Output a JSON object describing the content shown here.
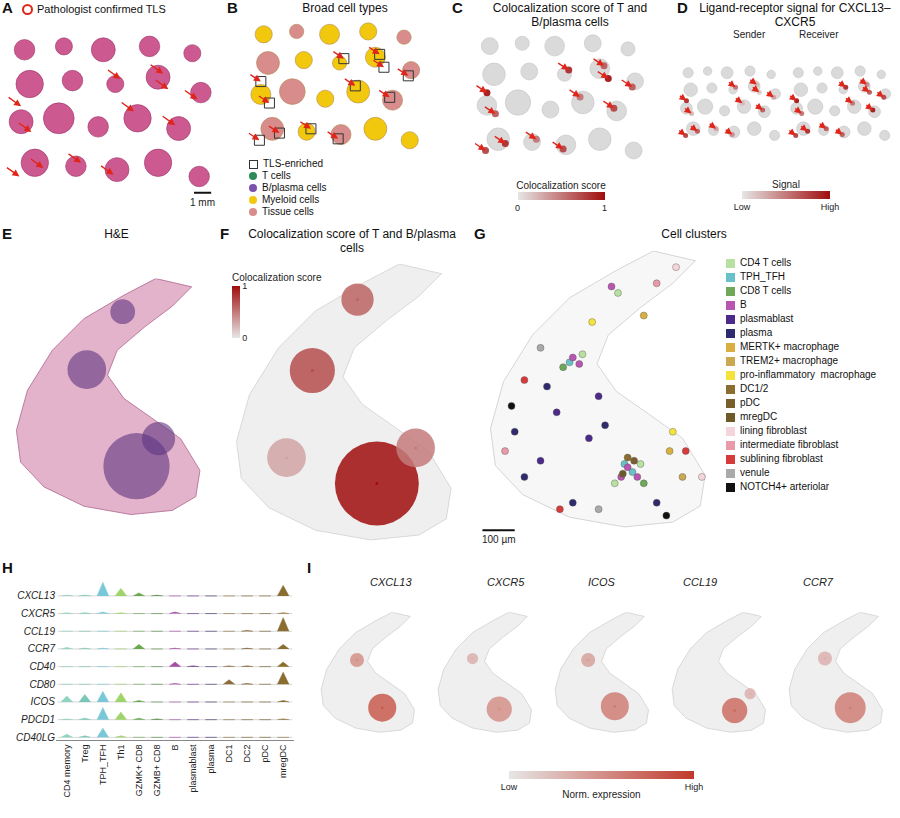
{
  "slide": {
    "xlim": [
      0,
      12.5
    ],
    "ylim": [
      0,
      9.5
    ],
    "sections": [
      [
        1.2,
        1.0,
        0.6
      ],
      [
        3.5,
        0.8,
        0.5
      ],
      [
        5.8,
        1.0,
        0.7
      ],
      [
        8.5,
        0.8,
        0.6
      ],
      [
        11.0,
        1.2,
        0.5
      ],
      [
        1.5,
        3.0,
        0.8
      ],
      [
        4.0,
        2.8,
        0.6
      ],
      [
        6.5,
        3.0,
        0.5
      ],
      [
        9.0,
        2.6,
        0.7
      ],
      [
        11.5,
        3.5,
        0.6
      ],
      [
        1.0,
        5.2,
        0.7
      ],
      [
        3.2,
        5.0,
        0.9
      ],
      [
        5.5,
        5.5,
        0.6
      ],
      [
        7.8,
        5.0,
        0.8
      ],
      [
        10.2,
        5.6,
        0.7
      ],
      [
        1.8,
        7.6,
        0.8
      ],
      [
        4.2,
        7.8,
        0.6
      ],
      [
        6.6,
        8.0,
        0.7
      ],
      [
        9.0,
        7.6,
        0.8
      ],
      [
        11.4,
        8.4,
        0.6
      ]
    ],
    "tls": [
      [
        1.0,
        4.3
      ],
      [
        1.6,
        5.8
      ],
      [
        2.3,
        7.9
      ],
      [
        0.9,
        8.4
      ],
      [
        4.5,
        7.6
      ],
      [
        6.8,
        2.7
      ],
      [
        9.3,
        2.4
      ],
      [
        9.6,
        3.3
      ],
      [
        10.0,
        5.4
      ],
      [
        7.6,
        4.6
      ],
      [
        11.3,
        3.9
      ],
      [
        6.4,
        8.3
      ]
    ]
  },
  "tissue": {
    "xlim": [
      0,
      750
    ],
    "ylim": [
      0,
      880
    ],
    "outline": [
      [
        550,
        0
      ],
      [
        680,
        30
      ],
      [
        610,
        100
      ],
      [
        510,
        175
      ],
      [
        410,
        260
      ],
      [
        375,
        350
      ],
      [
        435,
        435
      ],
      [
        535,
        505
      ],
      [
        640,
        580
      ],
      [
        710,
        695
      ],
      [
        695,
        790
      ],
      [
        610,
        840
      ],
      [
        460,
        855
      ],
      [
        290,
        825
      ],
      [
        145,
        755
      ],
      [
        60,
        665
      ],
      [
        45,
        550
      ],
      [
        85,
        405
      ],
      [
        175,
        260
      ],
      [
        290,
        145
      ],
      [
        435,
        60
      ]
    ]
  },
  "chart_data": [
    {
      "label": "A",
      "type": "slide_he",
      "legend_text": "Pathologist confirmed TLS",
      "color": "#cc5a90",
      "scale_bar": {
        "length": 1,
        "label": "1 mm"
      }
    },
    {
      "label": "B",
      "type": "slide_celltypes",
      "title": "Broad cell types",
      "series": [
        {
          "name": "TLS-enriched",
          "color": "#333333",
          "marker": "square"
        },
        {
          "name": "T cells",
          "color": "#2e8b57",
          "marker": "circle"
        },
        {
          "name": "B/plasma cells",
          "color": "#7b52ab",
          "marker": "circle"
        },
        {
          "name": "Myeloid cells",
          "color": "#f2c80f",
          "marker": "circle"
        },
        {
          "name": "Tissue cells",
          "color": "#d98c8c",
          "marker": "circle"
        }
      ],
      "section_types": [
        "Myeloid cells",
        "Tissue cells",
        "Myeloid cells",
        "Myeloid cells",
        "Tissue cells",
        "Tissue cells",
        "Myeloid cells",
        "Myeloid cells",
        "Myeloid cells",
        "Tissue cells",
        "Myeloid cells",
        "Tissue cells",
        "Myeloid cells",
        "Myeloid cells",
        "Tissue cells",
        "Tissue cells",
        "Myeloid cells",
        "Tissue cells",
        "Myeloid cells",
        "Myeloid cells"
      ]
    },
    {
      "label": "C",
      "type": "slide_score",
      "title": "Colocalization score of T and B/plasma cells",
      "values": [
        0.9,
        0.6,
        0.8,
        0.7,
        0.5,
        0.8,
        0.6,
        0.9,
        0.7,
        0.5,
        0.6,
        0.7
      ],
      "colorbar": {
        "title": "Colocalization score",
        "range": [
          0,
          1
        ],
        "ticks": [
          0,
          1
        ]
      }
    },
    {
      "label": "D",
      "type": "slide_signal",
      "title": "Ligand-receptor signal for CXCL13–CXCR5",
      "subtitles": [
        "Sender",
        "Receiver"
      ],
      "sender": [
        0.8,
        0.2,
        0.6,
        0.7,
        0.3,
        0.5,
        0.2,
        0.1,
        0.6,
        0.2,
        0.3,
        0.4
      ],
      "receiver": [
        0.9,
        0.5,
        0.8,
        0.7,
        0.6,
        0.8,
        0.4,
        0.6,
        0.9,
        0.5,
        0.7,
        0.6
      ],
      "colorbar": {
        "title": "Signal",
        "range": [
          0,
          1
        ],
        "ticks": [
          {
            "value": 0,
            "label": "Low"
          },
          {
            "value": 1,
            "label": "High"
          }
        ]
      }
    },
    {
      "label": "E",
      "type": "tissue_he",
      "title": "H&E",
      "regions": [
        [
          300,
          330,
          70
        ],
        [
          430,
          120,
          45
        ],
        [
          480,
          680,
          120
        ],
        [
          560,
          580,
          60
        ]
      ]
    },
    {
      "label": "F",
      "type": "tissue_score",
      "title": "Colocalization score of T and B/plasma cells",
      "hotspots": [
        [
          420,
          110,
          50,
          0.6
        ],
        [
          280,
          330,
          70,
          0.7
        ],
        [
          480,
          680,
          130,
          1.0
        ],
        [
          600,
          570,
          60,
          0.5
        ],
        [
          200,
          600,
          60,
          0.3
        ]
      ],
      "colorbar": {
        "title": "Colocalization score",
        "range": [
          0,
          1
        ],
        "ticks": [
          0,
          1
        ]
      }
    },
    {
      "label": "G",
      "type": "tissue_clusters",
      "title": "Cell clusters",
      "series": [
        {
          "name": "CD4 T cells",
          "color": "#b8e0a0"
        },
        {
          "name": "TPH_TFH",
          "color": "#66c2c8"
        },
        {
          "name": "CD8 T cells",
          "color": "#6fa85a"
        },
        {
          "name": "B",
          "color": "#b855b0"
        },
        {
          "name": "plasmablast",
          "color": "#4b2a8a"
        },
        {
          "name": "plasma",
          "color": "#2f2a6e"
        },
        {
          "name": "MERTK+ macrophage",
          "color": "#d9b040"
        },
        {
          "name": "TREM2+ macrophage",
          "color": "#c9a850"
        },
        {
          "name": "pro-inflammatory  macrophage",
          "color": "#f5e23a"
        },
        {
          "name": "DC1/2",
          "color": "#8a6d2f"
        },
        {
          "name": "pDC",
          "color": "#7a5f2e"
        },
        {
          "name": "mregDC",
          "color": "#6e5a28"
        },
        {
          "name": "lining fibroblast",
          "color": "#f5d5dc"
        },
        {
          "name": "intermediate fibroblast",
          "color": "#e89aa8"
        },
        {
          "name": "sublining fibroblast",
          "color": "#d73a3a"
        },
        {
          "name": "venule",
          "color": "#aaaaaa"
        },
        {
          "name": "NOTCH4+ arteriolar",
          "color": "#111111"
        }
      ],
      "spots": [
        [
          300,
          330,
          "B"
        ],
        [
          320,
          350,
          "B"
        ],
        [
          470,
          670,
          "B"
        ],
        [
          500,
          700,
          "B"
        ],
        [
          450,
          700,
          "B"
        ],
        [
          420,
          110,
          "B"
        ],
        [
          290,
          345,
          "TPH_TFH"
        ],
        [
          485,
          685,
          "TPH_TFH"
        ],
        [
          460,
          660,
          "TPH_TFH"
        ],
        [
          330,
          320,
          "CD4 T cells"
        ],
        [
          510,
          660,
          "CD4 T cells"
        ],
        [
          440,
          130,
          "CD4 T cells"
        ],
        [
          430,
          720,
          "CD4 T cells"
        ],
        [
          270,
          360,
          "CD8 T cells"
        ],
        [
          520,
          720,
          "CD8 T cells"
        ],
        [
          380,
          450,
          "plasmablast"
        ],
        [
          250,
          500,
          "plasmablast"
        ],
        [
          200,
          650,
          "plasmablast"
        ],
        [
          350,
          580,
          "plasmablast"
        ],
        [
          150,
          700,
          "plasma"
        ],
        [
          300,
          780,
          "plasma"
        ],
        [
          220,
          420,
          "plasma"
        ],
        [
          400,
          540,
          "plasma"
        ],
        [
          560,
          780,
          "plasma"
        ],
        [
          120,
          560,
          "plasma"
        ],
        [
          600,
          620,
          "MERTK+ macrophage"
        ],
        [
          520,
          200,
          "MERTK+ macrophage"
        ],
        [
          640,
          700,
          "TREM2+ macrophage"
        ],
        [
          610,
          560,
          "pro-inflammatory  macrophage"
        ],
        [
          360,
          220,
          "pro-inflammatory  macrophage"
        ],
        [
          470,
          640,
          "DC1/2"
        ],
        [
          490,
          650,
          "pDC"
        ],
        [
          455,
          690,
          "mregDC"
        ],
        [
          620,
          50,
          "lining fibroblast"
        ],
        [
          700,
          700,
          "lining fibroblast"
        ],
        [
          560,
          100,
          "intermediate fibroblast"
        ],
        [
          90,
          620,
          "intermediate fibroblast"
        ],
        [
          150,
          400,
          "sublining fibroblast"
        ],
        [
          650,
          620,
          "sublining fibroblast"
        ],
        [
          260,
          800,
          "sublining fibroblast"
        ],
        [
          200,
          300,
          "venule"
        ],
        [
          380,
          800,
          "venule"
        ],
        [
          110,
          480,
          "NOTCH4+ arteriolar"
        ],
        [
          590,
          820,
          "NOTCH4+ arteriolar"
        ]
      ],
      "scale_bar": {
        "length": 100,
        "label": "100 µm"
      }
    },
    {
      "label": "H",
      "type": "violin",
      "categories": [
        "CD4 memory",
        "Treg",
        "TPH_TFH",
        "Th1",
        "GZMK+ CD8",
        "GZMB+ CD8",
        "B",
        "plasmablast",
        "plasma",
        "DC1",
        "DC2",
        "pDC",
        "mregDC"
      ],
      "genes": [
        "CXCL13",
        "CXCR5",
        "CCL19",
        "CCR7",
        "CD40",
        "CD80",
        "ICOS",
        "PDCD1",
        "CD40LG"
      ],
      "values": [
        [
          0.05,
          0.05,
          0.9,
          0.5,
          0.2,
          0.05,
          0,
          0,
          0,
          0,
          0,
          0,
          0.7
        ],
        [
          0.05,
          0.05,
          0.1,
          0.05,
          0,
          0,
          0.1,
          0,
          0,
          0,
          0,
          0,
          0.05
        ],
        [
          0,
          0,
          0,
          0,
          0,
          0,
          0,
          0,
          0,
          0,
          0.05,
          0,
          0.9
        ],
        [
          0.1,
          0.05,
          0.05,
          0,
          0.3,
          0,
          0.05,
          0,
          0,
          0,
          0.05,
          0,
          0.3
        ],
        [
          0,
          0,
          0,
          0,
          0,
          0,
          0.3,
          0.05,
          0,
          0.05,
          0.05,
          0,
          0.3
        ],
        [
          0,
          0,
          0,
          0,
          0,
          0,
          0.05,
          0,
          0,
          0.3,
          0.05,
          0,
          0.8
        ],
        [
          0.4,
          0.5,
          0.7,
          0.6,
          0.1,
          0,
          0,
          0,
          0,
          0,
          0,
          0,
          0.1
        ],
        [
          0.05,
          0.1,
          0.8,
          0.5,
          0.1,
          0.05,
          0,
          0,
          0,
          0,
          0,
          0,
          0.05
        ],
        [
          0.2,
          0.1,
          0.6,
          0.1,
          0,
          0,
          0,
          0,
          0,
          0,
          0,
          0,
          0
        ]
      ],
      "colors": [
        "#8fd3c0",
        "#79c7b8",
        "#78c8d8",
        "#9fd46a",
        "#6aa84f",
        "#4f8a3c",
        "#a64ca6",
        "#5b2c83",
        "#3c2a70",
        "#8b6b3a",
        "#7a5c2e",
        "#6b5a2a",
        "#8a6d2f"
      ]
    },
    {
      "label": "I",
      "type": "tissue_expression",
      "series": [
        {
          "name": "CXCL13",
          "hotspots": [
            [
              480,
              680,
              100,
              0.8
            ],
            [
              300,
              340,
              50,
              0.5
            ]
          ]
        },
        {
          "name": "CXCR5",
          "hotspots": [
            [
              480,
              690,
              90,
              0.5
            ],
            [
              290,
              330,
              40,
              0.3
            ]
          ]
        },
        {
          "name": "ICOS",
          "hotspots": [
            [
              470,
              670,
              100,
              0.6
            ],
            [
              280,
              340,
              50,
              0.4
            ]
          ]
        },
        {
          "name": "CCL19",
          "hotspots": [
            [
              490,
              700,
              90,
              0.7
            ],
            [
              600,
              580,
              40,
              0.3
            ]
          ]
        },
        {
          "name": "CCR7",
          "hotspots": [
            [
              480,
              680,
              110,
              0.6
            ],
            [
              300,
              330,
              50,
              0.3
            ]
          ]
        }
      ],
      "colorbar": {
        "title": "Norm. expression",
        "range": [
          0,
          1
        ],
        "ticks": [
          {
            "value": 0,
            "label": "Low"
          },
          {
            "value": 1,
            "label": "High"
          }
        ]
      }
    }
  ]
}
